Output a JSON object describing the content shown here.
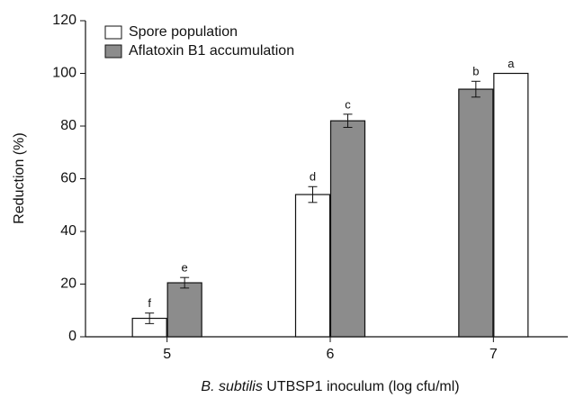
{
  "chart_data": {
    "type": "bar",
    "y_label": "Reduction (%)",
    "x_label": {
      "italic": "B. subtilis",
      "rest": " UTBSP1 inoculum (log cfu/ml)"
    },
    "categories": [
      "5",
      "6",
      "7"
    ],
    "series": [
      {
        "name": "Spore population",
        "color": "#ffffff",
        "values": [
          7,
          54,
          100
        ],
        "errors": [
          2,
          3,
          0
        ],
        "letters": [
          "f",
          "d",
          "a"
        ]
      },
      {
        "name": "Aflatoxin B1 accumulation",
        "color": "#8c8c8c",
        "values": [
          20.5,
          82,
          94
        ],
        "errors": [
          2,
          2.5,
          3
        ],
        "letters": [
          "e",
          "c",
          "b"
        ]
      }
    ],
    "ylim": [
      0,
      120
    ],
    "yticks": [
      0,
      20,
      40,
      60,
      80,
      100,
      120
    ],
    "grid": false,
    "legend": "upper left"
  }
}
